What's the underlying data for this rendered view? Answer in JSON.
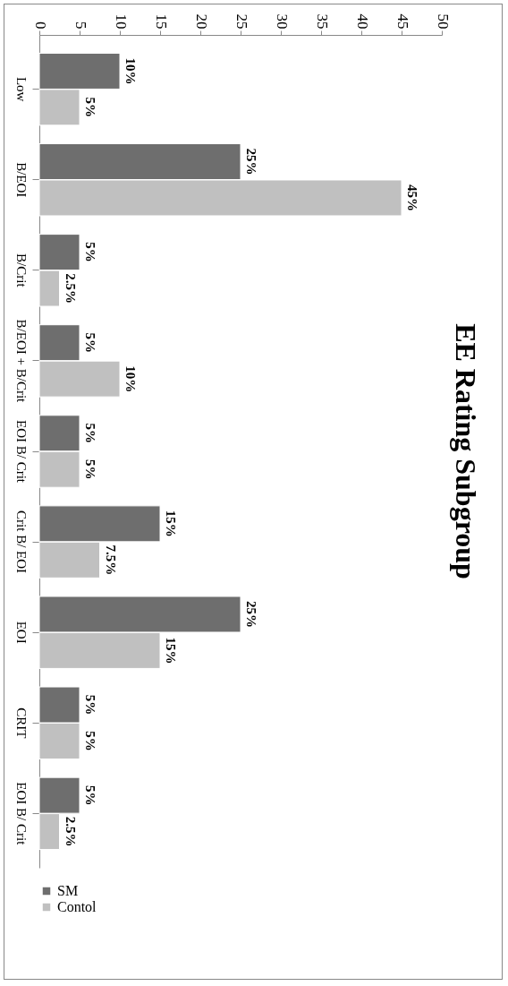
{
  "chart_data": {
    "type": "bar",
    "title": "EE Rating Subgroup",
    "orientation": "horizontal",
    "categories": [
      "Low",
      "B/EOI",
      "B/Crit",
      "B/EOI + B/Crit",
      "EOI B/ Crit",
      "Crit B/ EOI",
      "EOI",
      "CRIT",
      "EOI B/ Crit"
    ],
    "series": [
      {
        "name": "SM",
        "color": "#6e6e6e",
        "values": [
          10,
          25,
          5,
          5,
          5,
          15,
          25,
          5,
          5
        ],
        "value_labels": [
          "10%",
          "25%",
          "5%",
          "5%",
          "5%",
          "15%",
          "25%",
          "5%",
          "5%"
        ]
      },
      {
        "name": "Contol",
        "color": "#c0c0c0",
        "values": [
          5,
          45,
          2.5,
          10,
          5,
          7.5,
          15,
          5,
          2.5
        ],
        "value_labels": [
          "5%",
          "45%",
          "2.5%",
          "10%",
          "5%",
          "7.5%",
          "15%",
          "5%",
          "2.5%"
        ]
      }
    ],
    "xlim": [
      0,
      50
    ],
    "xticks": [
      0,
      5,
      10,
      15,
      20,
      25,
      30,
      35,
      40,
      45,
      50
    ],
    "grid": false,
    "legend": "bottom"
  }
}
